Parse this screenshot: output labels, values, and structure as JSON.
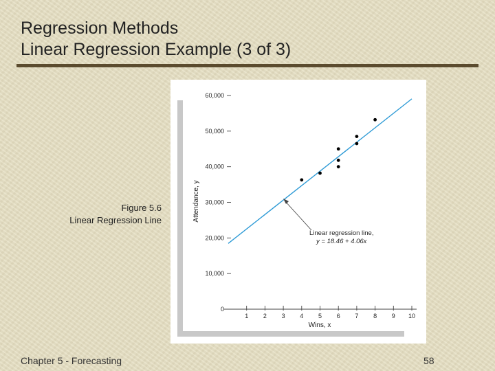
{
  "slide": {
    "title_line1": "Regression Methods",
    "title_line2": "Linear Regression Example (3 of 3)",
    "figure_number": "Figure 5.6",
    "figure_caption": "Linear Regression Line",
    "footer_left": "Chapter 5 - Forecasting",
    "page_number": "58"
  },
  "colors": {
    "background": "#e6dfc2",
    "title_rule": "#5b4b2e",
    "regression_line": "#2f9bd6",
    "points": "#000000"
  },
  "chart_data": {
    "type": "scatter",
    "title": "",
    "xlabel": "Wins, x",
    "ylabel": "Attendance, y",
    "xlim": [
      0,
      10
    ],
    "ylim": [
      0,
      60000
    ],
    "x_ticks": [
      "1",
      "2",
      "3",
      "4",
      "5",
      "6",
      "7",
      "8",
      "9",
      "10"
    ],
    "y_ticks": [
      "0",
      "10,000",
      "20,000",
      "30,000",
      "40,000",
      "50,000",
      "60,000"
    ],
    "series": [
      {
        "points": [
          {
            "x": 4,
            "y": 36300
          },
          {
            "x": 5,
            "y": 38200
          },
          {
            "x": 6,
            "y": 40000
          },
          {
            "x": 6,
            "y": 41800
          },
          {
            "x": 6,
            "y": 45000
          },
          {
            "x": 7,
            "y": 46500
          },
          {
            "x": 7,
            "y": 48500
          },
          {
            "x": 8,
            "y": 53200
          }
        ]
      }
    ],
    "regression_line": {
      "intercept": 18460,
      "slope": 4060,
      "x_range": [
        0,
        10
      ]
    },
    "annotation": {
      "line1": "Linear regression line,",
      "line2": "y = 18.46 + 4.06x"
    },
    "grid": false
  }
}
